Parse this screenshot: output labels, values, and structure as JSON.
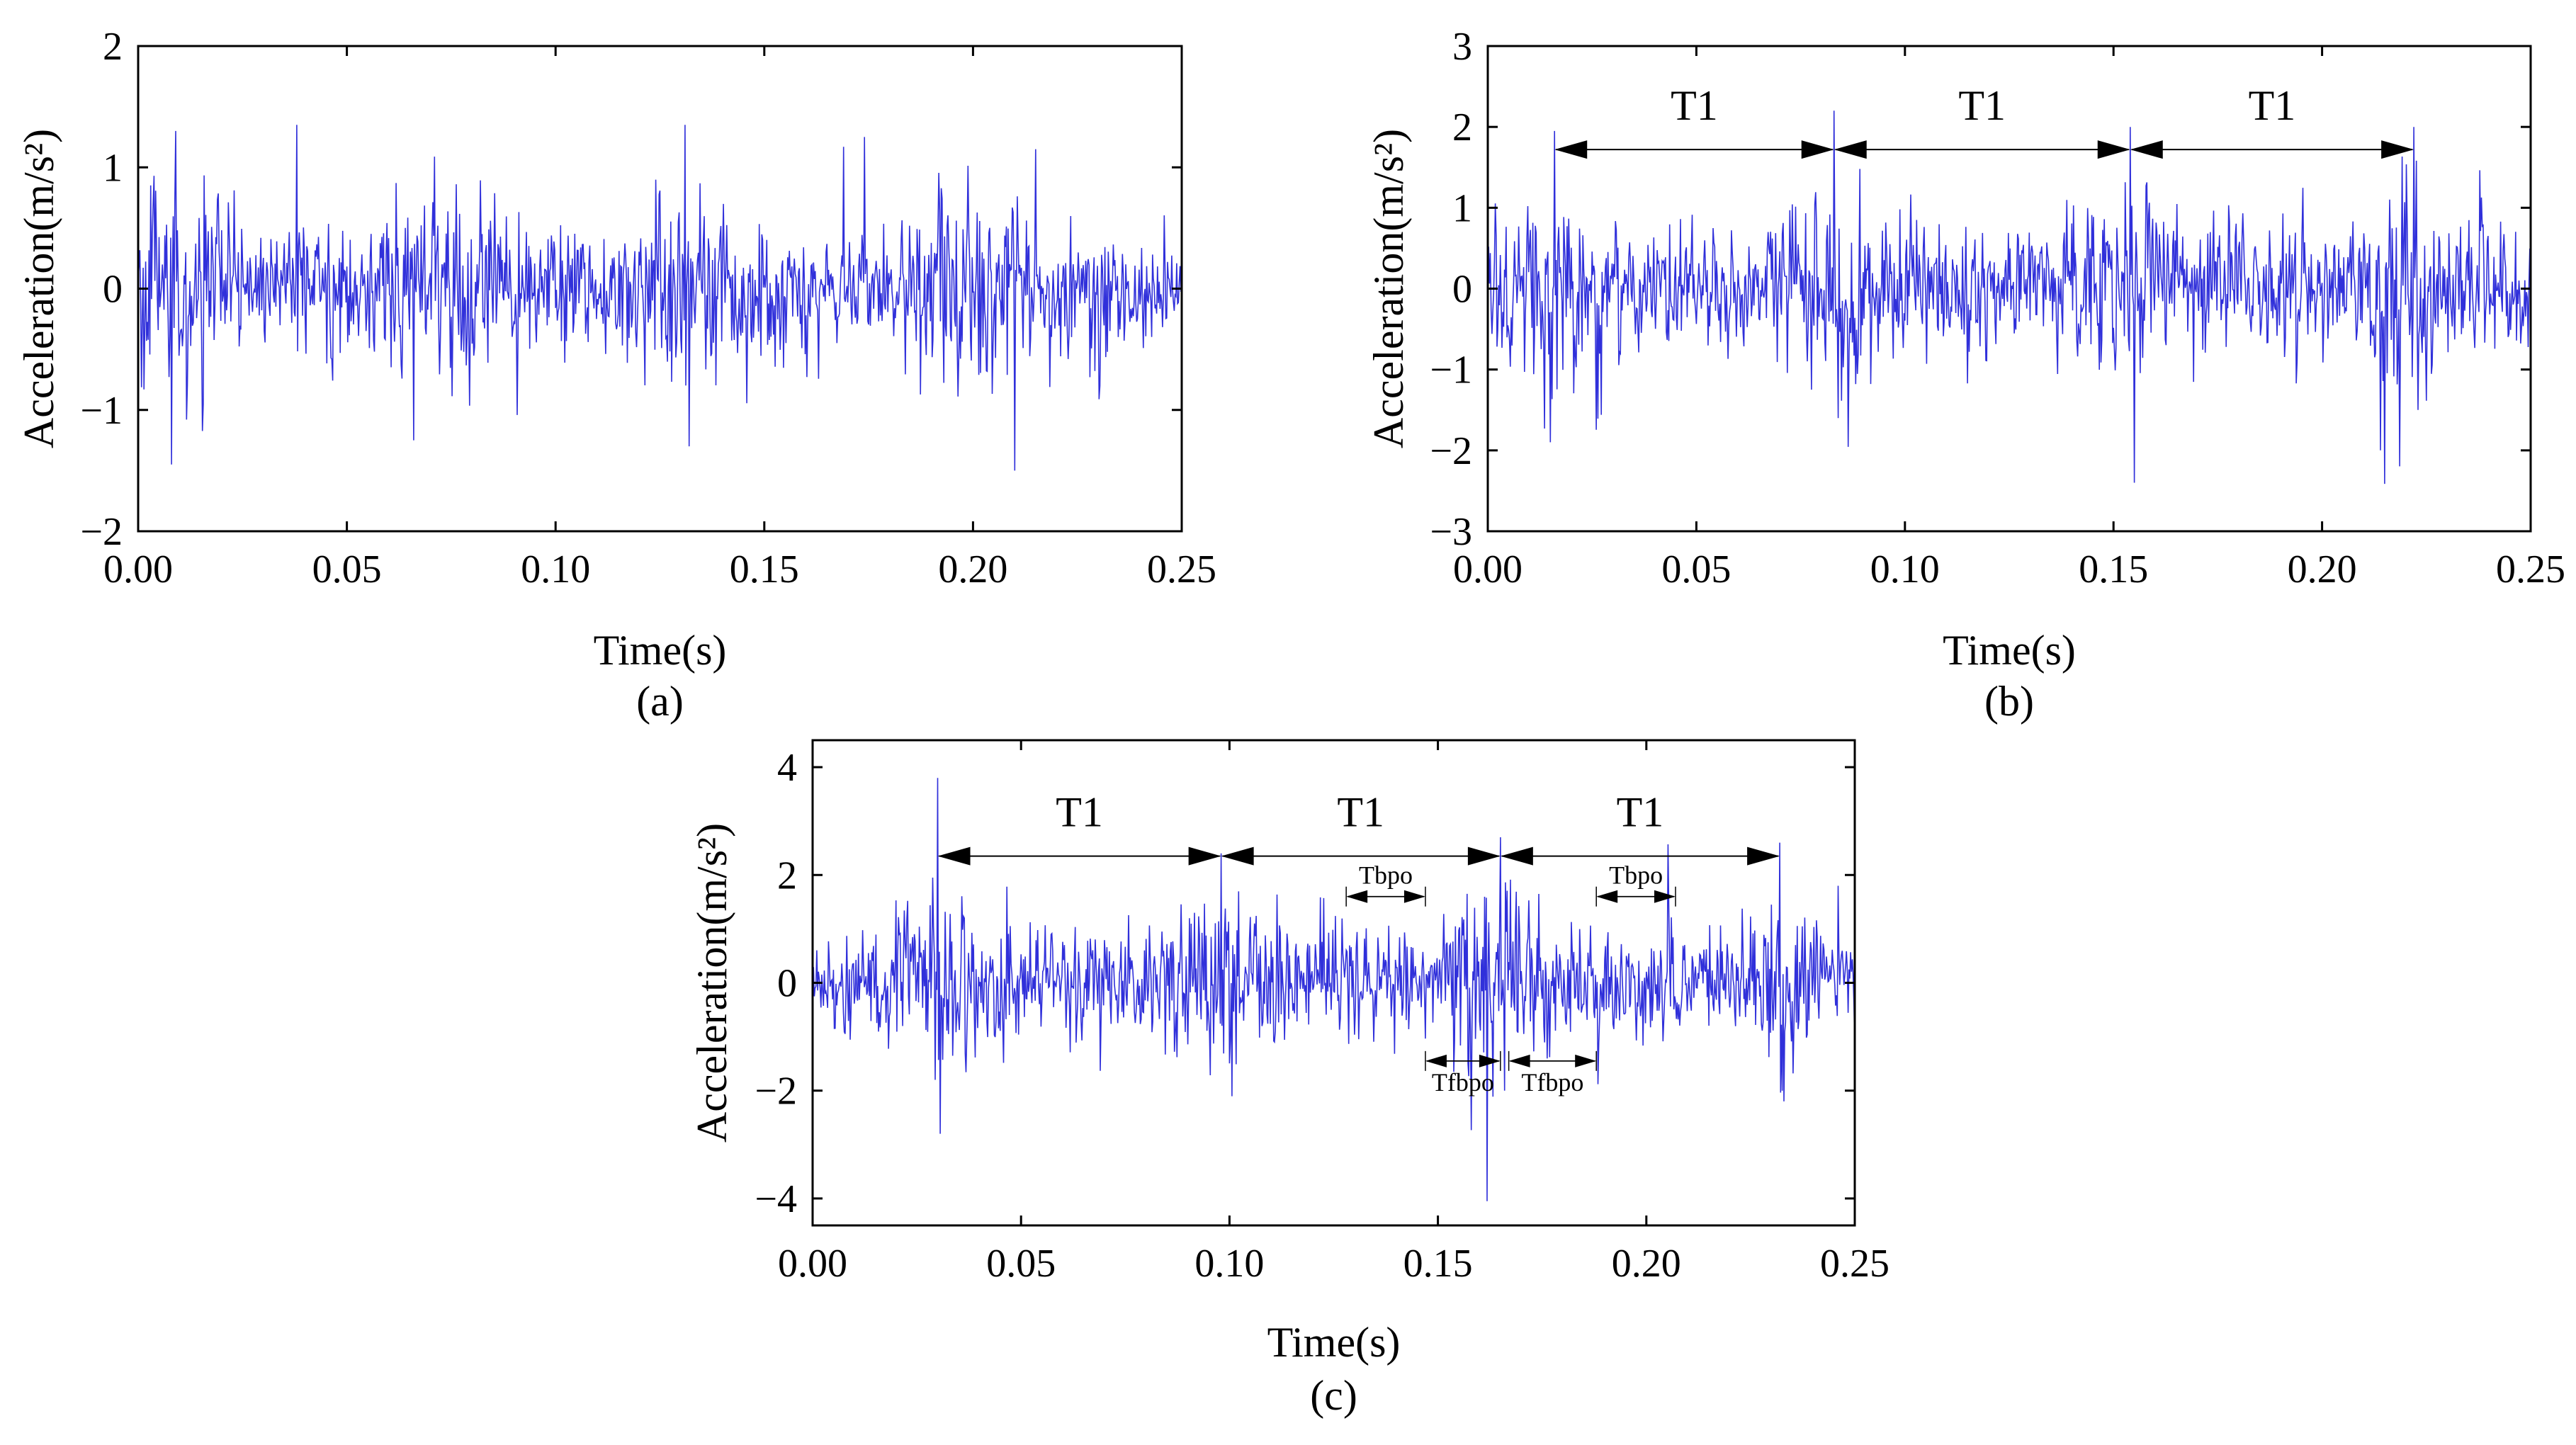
{
  "figure": {
    "signal_color": "#1a1ad6"
  },
  "chart_data": [
    {
      "type": "line",
      "panel_label": "(a)",
      "xlabel": "Time(s)",
      "ylabel": "Acceleration(m/s²)",
      "xlim": [
        0,
        0.25
      ],
      "ylim": [
        -2,
        2
      ],
      "xticks": [
        0,
        0.05,
        0.1,
        0.15,
        0.2,
        0.25
      ],
      "xtick_labels": [
        "0.00",
        "0.05",
        "0.10",
        "0.15",
        "0.20",
        "0.25"
      ],
      "yticks": [
        -2,
        -1,
        0,
        1,
        2
      ],
      "ytick_labels": [
        "−2",
        "−1",
        "0",
        "1",
        "2"
      ],
      "series": [
        {
          "name": "acceleration",
          "sample_interval_s": 0.0002,
          "amplitude_std": 0.3,
          "burst_times_s": [
            0.008,
            0.07,
            0.13,
            0.2
          ],
          "spikes": [
            {
              "t": 0.008,
              "v": -1.45
            },
            {
              "t": 0.009,
              "v": 1.3
            },
            {
              "t": 0.038,
              "v": 1.35
            },
            {
              "t": 0.066,
              "v": -1.25
            },
            {
              "t": 0.131,
              "v": 1.35
            },
            {
              "t": 0.132,
              "v": -1.3
            },
            {
              "t": 0.174,
              "v": 1.25
            },
            {
              "t": 0.21,
              "v": -1.5
            },
            {
              "t": 0.215,
              "v": 1.15
            }
          ]
        }
      ],
      "annotations": []
    },
    {
      "type": "line",
      "panel_label": "(b)",
      "xlabel": "Time(s)",
      "ylabel": "Acceleration(m/s²)",
      "xlim": [
        0,
        0.25
      ],
      "ylim": [
        -3,
        3
      ],
      "xticks": [
        0,
        0.05,
        0.1,
        0.15,
        0.2,
        0.25
      ],
      "xtick_labels": [
        "0.00",
        "0.05",
        "0.10",
        "0.15",
        "0.20",
        "0.25"
      ],
      "yticks": [
        -3,
        -2,
        -1,
        0,
        1,
        2,
        3
      ],
      "ytick_labels": [
        "−3",
        "−2",
        "−1",
        "0",
        "1",
        "2",
        "3"
      ],
      "series": [
        {
          "name": "acceleration",
          "sample_interval_s": 0.0002,
          "amplitude_std": 0.45,
          "burst_times_s": [
            0.015,
            0.083,
            0.154,
            0.222
          ],
          "spikes": [
            {
              "t": 0.015,
              "v": -1.9
            },
            {
              "t": 0.016,
              "v": 1.95
            },
            {
              "t": 0.083,
              "v": 2.2
            },
            {
              "t": 0.084,
              "v": -1.6
            },
            {
              "t": 0.154,
              "v": 2.0
            },
            {
              "t": 0.155,
              "v": -2.4
            },
            {
              "t": 0.222,
              "v": 2.0
            },
            {
              "t": 0.223,
              "v": -1.5
            }
          ]
        }
      ],
      "annotations": [
        {
          "label": "T1",
          "t_start": 0.016,
          "t_end": 0.083,
          "y": 1.72,
          "size": "big"
        },
        {
          "label": "T1",
          "t_start": 0.083,
          "t_end": 0.154,
          "y": 1.72,
          "size": "big"
        },
        {
          "label": "T1",
          "t_start": 0.154,
          "t_end": 0.222,
          "y": 1.72,
          "size": "big"
        }
      ]
    },
    {
      "type": "line",
      "panel_label": "(c)",
      "xlabel": "Time(s)",
      "ylabel": "Acceleration(m/s²)",
      "xlim": [
        0,
        0.25
      ],
      "ylim": [
        -4.5,
        4.5
      ],
      "xticks": [
        0,
        0.05,
        0.1,
        0.15,
        0.2,
        0.25
      ],
      "xtick_labels": [
        "0.00",
        "0.05",
        "0.10",
        "0.15",
        "0.20",
        "0.25"
      ],
      "yticks": [
        -4,
        -2,
        0,
        2,
        4
      ],
      "ytick_labels": [
        "−4",
        "−2",
        "0",
        "2",
        "4"
      ],
      "series": [
        {
          "name": "acceleration",
          "sample_interval_s": 0.0002,
          "amplitude_std": 0.6,
          "burst_times_s": [
            0.03,
            0.098,
            0.165,
            0.232
          ],
          "spikes": [
            {
              "t": 0.03,
              "v": 3.8
            },
            {
              "t": 0.0305,
              "v": -2.8
            },
            {
              "t": 0.098,
              "v": 2.4
            },
            {
              "t": 0.165,
              "v": 2.7
            },
            {
              "t": 0.166,
              "v": -2.0
            },
            {
              "t": 0.232,
              "v": 2.6
            },
            {
              "t": 0.233,
              "v": -2.2
            }
          ]
        }
      ],
      "annotations": [
        {
          "label": "T1",
          "t_start": 0.03,
          "t_end": 0.098,
          "y": 2.35,
          "size": "big"
        },
        {
          "label": "T1",
          "t_start": 0.098,
          "t_end": 0.165,
          "y": 2.35,
          "size": "big"
        },
        {
          "label": "T1",
          "t_start": 0.165,
          "t_end": 0.232,
          "y": 2.35,
          "size": "big"
        },
        {
          "label": "Tbpo",
          "t_start": 0.128,
          "t_end": 0.147,
          "y": 1.6,
          "size": "small"
        },
        {
          "label": "Tbpo",
          "t_start": 0.188,
          "t_end": 0.207,
          "y": 1.6,
          "size": "small"
        },
        {
          "label": "Tfbpo",
          "t_start": 0.147,
          "t_end": 0.165,
          "y": -1.45,
          "size": "small"
        },
        {
          "label": "Tfbpo",
          "t_start": 0.167,
          "t_end": 0.188,
          "y": -1.45,
          "size": "small"
        }
      ]
    }
  ]
}
